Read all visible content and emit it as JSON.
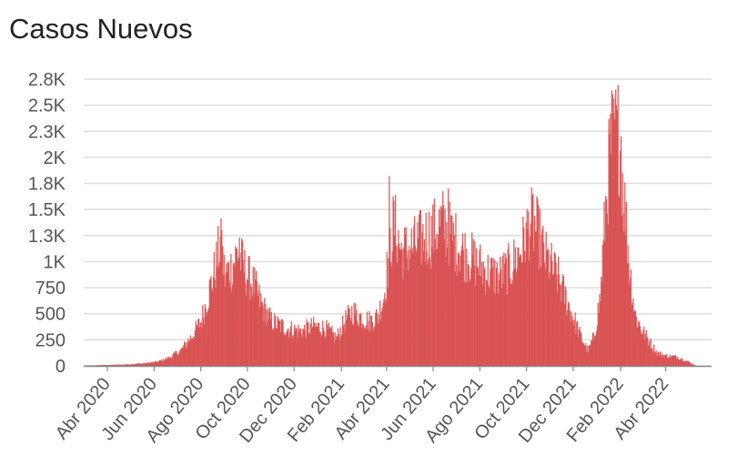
{
  "title": "Casos Nuevos",
  "colors": {
    "bar": "#e05a5a",
    "bar_stroke": "#c94040",
    "grid": "#dddddd",
    "axis": "#888888"
  },
  "chart_data": {
    "type": "bar",
    "title": "Casos Nuevos",
    "xlabel": "",
    "ylabel": "",
    "ylim": [
      0,
      2750
    ],
    "yticks": [
      0,
      250,
      500,
      750,
      1000,
      1250,
      1500,
      1750,
      2000,
      2250,
      2500,
      2750
    ],
    "yticklabels": [
      "0",
      "250",
      "500",
      "750",
      "1K",
      "1.3K",
      "1.5K",
      "1.8K",
      "2K",
      "2.3K",
      "2.5K",
      "2.8K"
    ],
    "xticks": [
      "2020-04-01",
      "2020-06-01",
      "2020-08-01",
      "2020-10-01",
      "2020-12-01",
      "2021-02-01",
      "2021-04-01",
      "2021-06-01",
      "2021-08-01",
      "2021-10-01",
      "2021-12-01",
      "2022-02-01",
      "2022-04-01"
    ],
    "xticklabels": [
      "Abr 2020",
      "Jun 2020",
      "Ago 2020",
      "Oct 2020",
      "Dec 2020",
      "Feb 2021",
      "Abr 2021",
      "Jun 2021",
      "Ago 2021",
      "Oct 2021",
      "Dec 2021",
      "Feb 2022",
      "Abr 2022"
    ],
    "grid": true,
    "series_points": [
      [
        "2020-03-01",
        0
      ],
      [
        "2020-03-20",
        5
      ],
      [
        "2020-04-15",
        10
      ],
      [
        "2020-05-01",
        15
      ],
      [
        "2020-05-20",
        25
      ],
      [
        "2020-06-05",
        40
      ],
      [
        "2020-06-20",
        80
      ],
      [
        "2020-07-05",
        150
      ],
      [
        "2020-07-20",
        300
      ],
      [
        "2020-08-01",
        450
      ],
      [
        "2020-08-10",
        700
      ],
      [
        "2020-08-20",
        1000
      ],
      [
        "2020-08-26",
        1250
      ],
      [
        "2020-09-01",
        900
      ],
      [
        "2020-09-10",
        1000
      ],
      [
        "2020-09-18",
        1150
      ],
      [
        "2020-09-28",
        950
      ],
      [
        "2020-10-10",
        800
      ],
      [
        "2020-10-20",
        600
      ],
      [
        "2020-11-01",
        450
      ],
      [
        "2020-11-20",
        380
      ],
      [
        "2020-12-10",
        350
      ],
      [
        "2020-12-25",
        400
      ],
      [
        "2021-01-10",
        380
      ],
      [
        "2021-01-25",
        280
      ],
      [
        "2021-02-05",
        450
      ],
      [
        "2021-02-15",
        550
      ],
      [
        "2021-02-28",
        480
      ],
      [
        "2021-03-10",
        450
      ],
      [
        "2021-03-20",
        500
      ],
      [
        "2021-03-28",
        700
      ],
      [
        "2021-04-05",
        1200
      ],
      [
        "2021-04-10",
        1450
      ],
      [
        "2021-04-20",
        1150
      ],
      [
        "2021-05-05",
        1200
      ],
      [
        "2021-05-20",
        1300
      ],
      [
        "2021-06-01",
        1350
      ],
      [
        "2021-06-12",
        1450
      ],
      [
        "2021-06-25",
        1300
      ],
      [
        "2021-07-10",
        1150
      ],
      [
        "2021-07-25",
        1050
      ],
      [
        "2021-08-10",
        950
      ],
      [
        "2021-08-25",
        900
      ],
      [
        "2021-09-10",
        1000
      ],
      [
        "2021-09-25",
        1200
      ],
      [
        "2021-10-05",
        1450
      ],
      [
        "2021-10-15",
        1350
      ],
      [
        "2021-10-25",
        1100
      ],
      [
        "2021-11-10",
        900
      ],
      [
        "2021-11-25",
        600
      ],
      [
        "2021-12-10",
        300
      ],
      [
        "2021-12-20",
        150
      ],
      [
        "2021-12-28",
        300
      ],
      [
        "2022-01-05",
        700
      ],
      [
        "2022-01-12",
        1600
      ],
      [
        "2022-01-18",
        2200
      ],
      [
        "2022-01-24",
        2450
      ],
      [
        "2022-01-30",
        2300
      ],
      [
        "2022-02-05",
        1700
      ],
      [
        "2022-02-12",
        1000
      ],
      [
        "2022-02-20",
        500
      ],
      [
        "2022-03-01",
        350
      ],
      [
        "2022-03-10",
        250
      ],
      [
        "2022-03-20",
        130
      ],
      [
        "2022-04-01",
        100
      ],
      [
        "2022-04-15",
        90
      ],
      [
        "2022-04-25",
        60
      ],
      [
        "2022-05-05",
        20
      ],
      [
        "2022-05-10",
        0
      ]
    ],
    "spikes": [
      [
        "2020-08-28",
        1300
      ],
      [
        "2020-09-20",
        1230
      ],
      [
        "2021-04-04",
        1820
      ],
      [
        "2021-06-20",
        1700
      ],
      [
        "2021-10-09",
        1650
      ],
      [
        "2022-01-25",
        2650
      ],
      [
        "2022-01-27",
        2450
      ],
      [
        "2022-01-22",
        2420
      ],
      [
        "2022-02-01",
        2200
      ]
    ]
  }
}
